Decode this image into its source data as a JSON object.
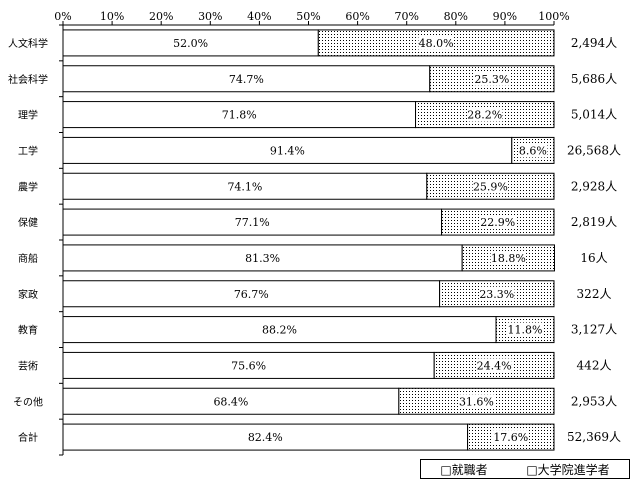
{
  "chart_data": {
    "type": "bar",
    "stacked": "percent",
    "orientation": "horizontal",
    "x_ticks": [
      "0%",
      "10%",
      "20%",
      "30%",
      "40%",
      "50%",
      "60%",
      "70%",
      "80%",
      "90%",
      "100%"
    ],
    "xlim": [
      0,
      100
    ],
    "categories": [
      "人文科学",
      "社会科学",
      "理学",
      "工学",
      "農学",
      "保健",
      "商船",
      "家政",
      "教育",
      "芸術",
      "その他",
      "合計"
    ],
    "series": [
      {
        "name": "就職者",
        "values": [
          52.0,
          74.7,
          71.8,
          91.4,
          74.1,
          77.1,
          81.3,
          76.7,
          88.2,
          75.6,
          68.4,
          82.4
        ],
        "labels": [
          "52.0%",
          "74.7%",
          "71.8%",
          "91.4%",
          "74.1%",
          "77.1%",
          "81.3%",
          "76.7%",
          "88.2%",
          "75.6%",
          "68.4%",
          "82.4%"
        ],
        "fill": "#ffffff"
      },
      {
        "name": "大学院進学者",
        "values": [
          48.0,
          25.3,
          28.2,
          8.6,
          25.9,
          22.9,
          18.8,
          23.3,
          11.8,
          24.4,
          31.6,
          17.6
        ],
        "labels": [
          "48.0%",
          "25.3%",
          "28.2%",
          "8.6%",
          "25.9%",
          "22.9%",
          "18.8%",
          "23.3%",
          "11.8%",
          "24.4%",
          "31.6%",
          "17.6%"
        ],
        "fill": "dotted"
      }
    ],
    "totals": [
      "2,494人",
      "5,686人",
      "5,014人",
      "26,568人",
      "2,928人",
      "2,819人",
      "16人",
      "322人",
      "3,127人",
      "442人",
      "2,953人",
      "52,369人"
    ],
    "legend": {
      "position": "bottom-right",
      "items": [
        "□就職者",
        "□大学院進学者"
      ]
    },
    "grid": false
  }
}
